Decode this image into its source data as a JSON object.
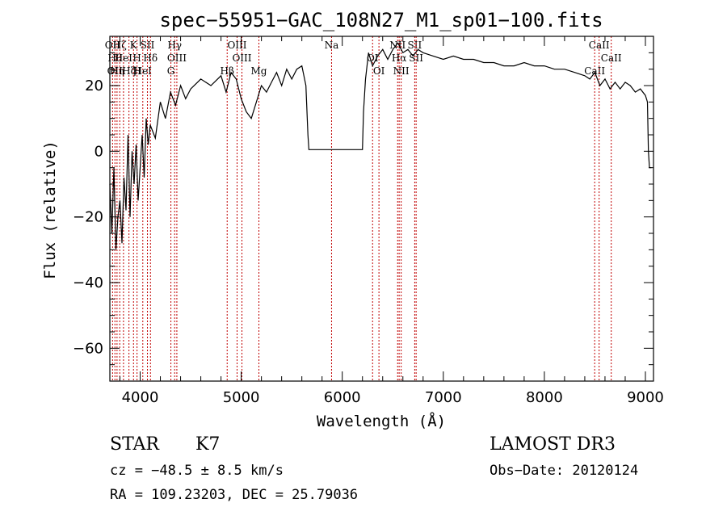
{
  "chart_data": {
    "type": "line",
    "title": "spec−55951−GAC_108N27_M1_sp01−100.fits",
    "xlabel": "Wavelength (Å)",
    "ylabel": "Flux (relative)",
    "xlim": [
      3700,
      9080
    ],
    "ylim": [
      -70,
      35
    ],
    "xticks": [
      4000,
      5000,
      6000,
      7000,
      8000,
      9000
    ],
    "yticks": [
      -60,
      -40,
      -20,
      0,
      20
    ],
    "xtick_labels": [
      "4000",
      "5000",
      "6000",
      "7000",
      "8000",
      "9000"
    ],
    "ytick_labels": [
      "−60",
      "−40",
      "−20",
      "0",
      "20"
    ],
    "series": [
      {
        "name": "flux",
        "x": [
          3700,
          3720,
          3740,
          3760,
          3780,
          3800,
          3820,
          3840,
          3860,
          3880,
          3900,
          3920,
          3940,
          3960,
          3980,
          4000,
          4020,
          4040,
          4060,
          4080,
          4100,
          4150,
          4200,
          4250,
          4300,
          4350,
          4400,
          4450,
          4500,
          4600,
          4700,
          4800,
          4850,
          4900,
          4950,
          5000,
          5050,
          5100,
          5150,
          5200,
          5250,
          5300,
          5350,
          5400,
          5450,
          5500,
          5550,
          5600,
          5640,
          5660,
          5670,
          6200,
          6210,
          6230,
          6260,
          6300,
          6350,
          6400,
          6450,
          6500,
          6550,
          6600,
          6650,
          6700,
          6750,
          6800,
          6900,
          7000,
          7100,
          7200,
          7300,
          7400,
          7500,
          7600,
          7700,
          7800,
          7900,
          8000,
          8100,
          8200,
          8300,
          8400,
          8450,
          8500,
          8550,
          8600,
          8650,
          8700,
          8750,
          8800,
          8850,
          8900,
          8950,
          9000,
          9020,
          9030,
          9040,
          9060
        ],
        "y": [
          -10,
          -25,
          -5,
          -30,
          -20,
          -15,
          -28,
          -8,
          -18,
          5,
          -20,
          0,
          -10,
          2,
          -15,
          -5,
          5,
          -8,
          10,
          2,
          8,
          4,
          15,
          10,
          18,
          14,
          20,
          16,
          19,
          22,
          20,
          23,
          18,
          24,
          22,
          16,
          12,
          10,
          15,
          20,
          18,
          21,
          24,
          20,
          25,
          22,
          25,
          26,
          20,
          5,
          0.5,
          0.5,
          12,
          22,
          30,
          26,
          29,
          31,
          28,
          31,
          33,
          30,
          31,
          29,
          31,
          30,
          29,
          28,
          29,
          28,
          28,
          27,
          27,
          26,
          26,
          27,
          26,
          26,
          25,
          25,
          24,
          23,
          22,
          24,
          20,
          22,
          19,
          21,
          19,
          21,
          20,
          18,
          19,
          17,
          15,
          0,
          -5,
          -5
        ]
      }
    ],
    "lines": [
      {
        "w": 3727,
        "labels": [
          "OII"
        ]
      },
      {
        "w": 3750,
        "labels": [
          "Hθ",
          "OII"
        ]
      },
      {
        "w": 3771,
        "labels": [
          "Hη"
        ]
      },
      {
        "w": 3798,
        "labels": [
          "Hζ"
        ]
      },
      {
        "w": 3835,
        "labels": [
          "HeI"
        ]
      },
      {
        "w": 3889,
        "labels": [
          "Hζ"
        ]
      },
      {
        "w": 3934,
        "labels": [
          "K"
        ]
      },
      {
        "w": 3969,
        "labels": [
          "H",
          "H"
        ]
      },
      {
        "w": 4026,
        "labels": [
          "HeI"
        ]
      },
      {
        "w": 4072,
        "labels": [
          "SII"
        ]
      },
      {
        "w": 4102,
        "labels": [
          "Hδ"
        ]
      },
      {
        "w": 4304,
        "labels": [
          "G"
        ]
      },
      {
        "w": 4341,
        "labels": [
          "Hγ"
        ]
      },
      {
        "w": 4363,
        "labels": [
          "OIII"
        ]
      },
      {
        "w": 4861,
        "labels": [
          "Hβ"
        ]
      },
      {
        "w": 4959,
        "labels": [
          "OIII"
        ]
      },
      {
        "w": 5007,
        "labels": [
          "OIII"
        ]
      },
      {
        "w": 5175,
        "labels": [
          "Mg"
        ]
      },
      {
        "w": 5894,
        "labels": [
          "Na"
        ]
      },
      {
        "w": 6300,
        "labels": [
          "OI"
        ]
      },
      {
        "w": 6363,
        "labels": [
          "OI"
        ]
      },
      {
        "w": 6548,
        "labels": [
          "NII"
        ]
      },
      {
        "w": 6563,
        "labels": [
          "Hα"
        ]
      },
      {
        "w": 6583,
        "labels": [
          "NII"
        ]
      },
      {
        "w": 6717,
        "labels": [
          "SII"
        ]
      },
      {
        "w": 6731,
        "labels": [
          "SII"
        ]
      },
      {
        "w": 8498,
        "labels": [
          "CaII"
        ]
      },
      {
        "w": 8542,
        "labels": [
          "CaII"
        ]
      },
      {
        "w": 8662,
        "labels": [
          "CaII"
        ]
      }
    ],
    "line_color": "#c00000"
  },
  "info": {
    "star_type": "STAR",
    "subclass": "K7",
    "survey": "LAMOST DR3",
    "cz": "cz = −48.5 ± 8.5 km/s",
    "obs_date": "Obs−Date: 20120124",
    "coords": "RA = 109.23203, DEC =  25.79036"
  }
}
